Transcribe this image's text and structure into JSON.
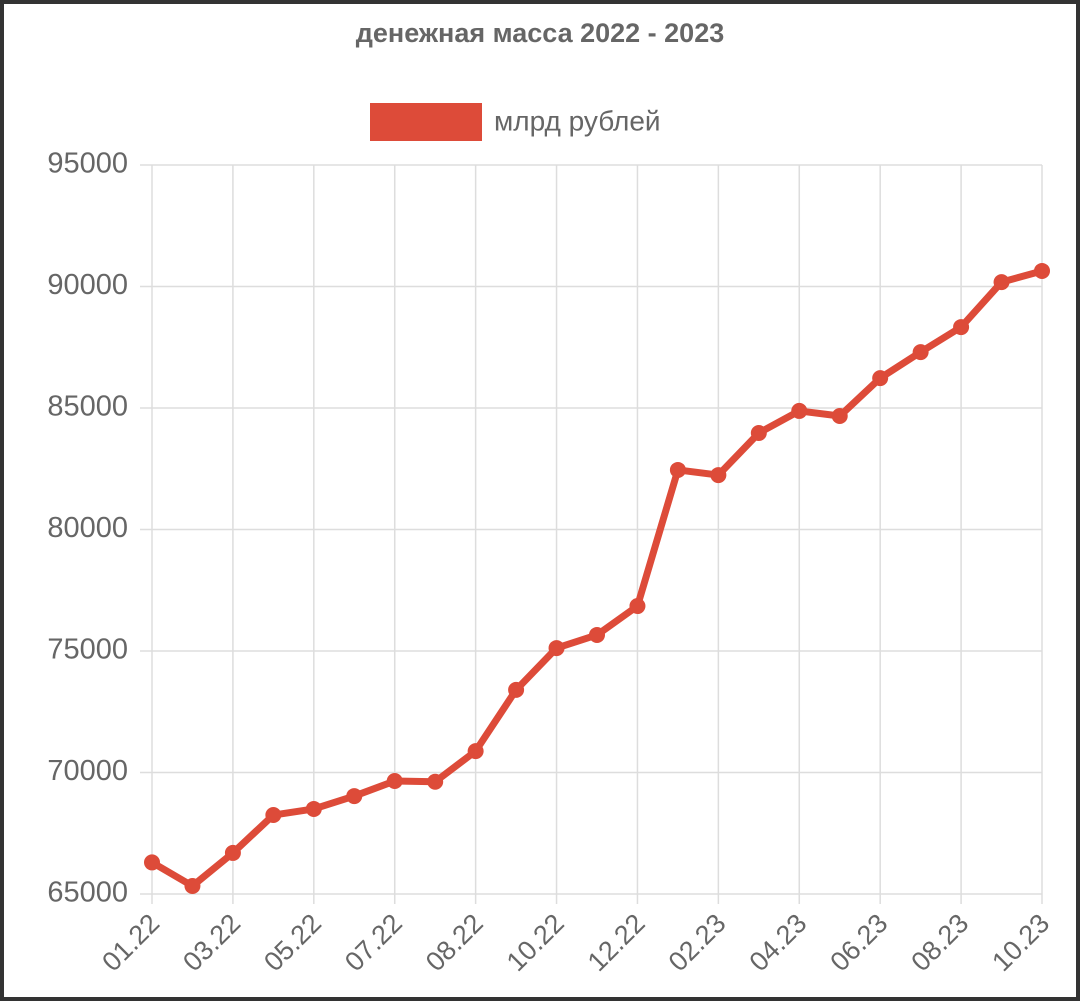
{
  "chart_data": {
    "type": "line",
    "title": "денежная масса 2022 - 2023",
    "categories": [
      "01.22",
      null,
      "03.22",
      null,
      "05.22",
      null,
      "07.22",
      null,
      "08.22",
      null,
      "10.22",
      null,
      "12.22",
      null,
      "02.23",
      null,
      "04.23",
      null,
      "06.23",
      null,
      "08.23",
      null,
      "10.23"
    ],
    "series": [
      {
        "name": "млрд рублей",
        "color": "#dd4b39",
        "values": [
          66300,
          65330,
          66690,
          68250,
          68500,
          69030,
          69650,
          69620,
          70880,
          73400,
          75120,
          75660,
          76850,
          82450,
          82240,
          83970,
          84880,
          84670,
          86230,
          87300,
          88330,
          90180,
          90640
        ]
      }
    ],
    "ylim": [
      65000,
      95000
    ],
    "yticks": [
      65000,
      70000,
      75000,
      80000,
      85000,
      90000,
      95000
    ],
    "grid": true
  }
}
